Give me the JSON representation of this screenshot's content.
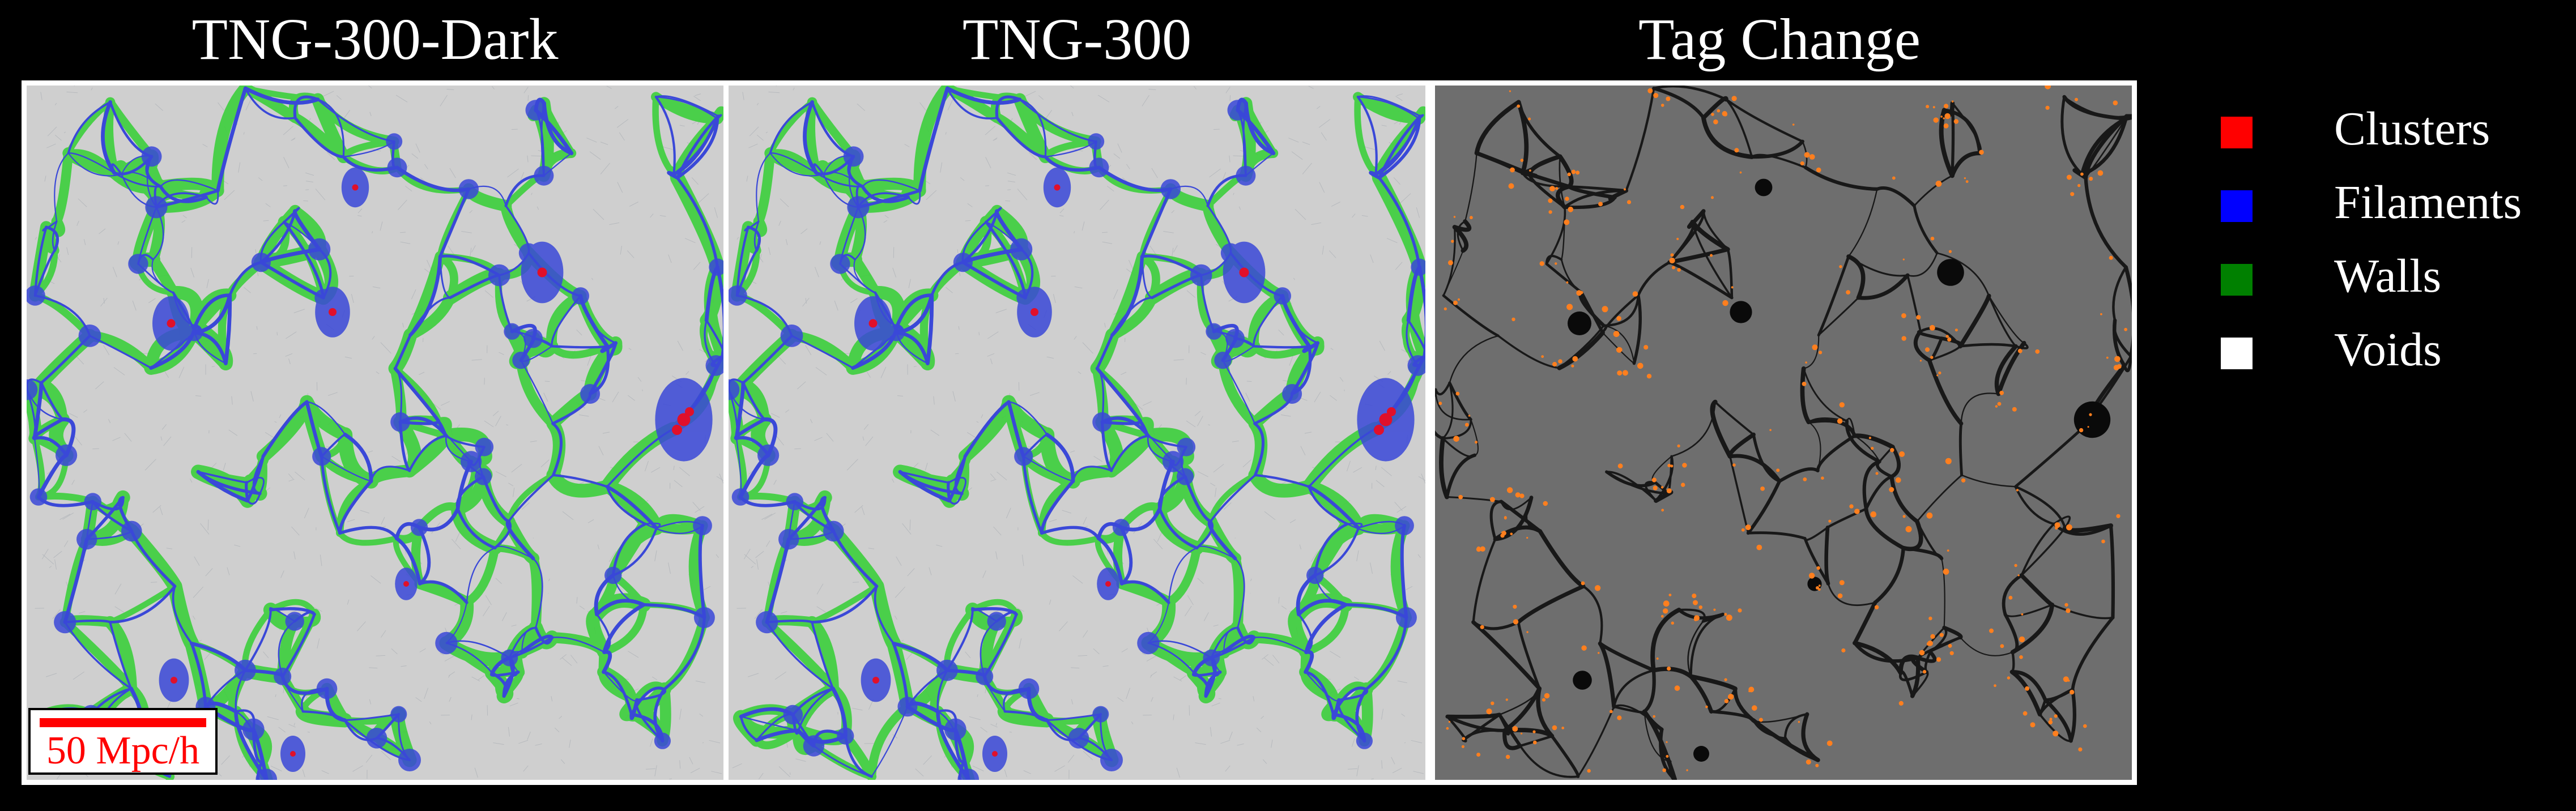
{
  "panels": [
    {
      "title": "TNG-300-Dark",
      "kind": "classification"
    },
    {
      "title": "TNG-300",
      "kind": "classification"
    },
    {
      "title": "Tag Change",
      "kind": "difference"
    }
  ],
  "scalebar": {
    "label": "50 Mpc/h",
    "color": "#ff0000"
  },
  "legend": [
    {
      "label": "Clusters",
      "color": "#ff0000"
    },
    {
      "label": "Filaments",
      "color": "#0000ff"
    },
    {
      "label": "Walls",
      "color": "#008000"
    },
    {
      "label": "Voids",
      "color": "#ffffff"
    }
  ],
  "colors": {
    "void_gray": "#cfcfcf",
    "wall_green": "#3ccf3c",
    "filament_blue": "#3a48d8",
    "cluster_red": "#e0102a",
    "diff_background": "#6e6e6e",
    "diff_unchanged_web": "#0a0a0a",
    "diff_changed": "#ff7f1e"
  }
}
